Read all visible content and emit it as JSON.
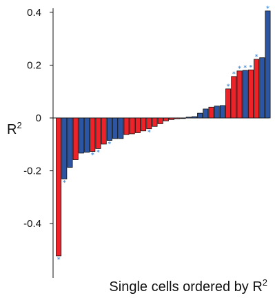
{
  "chart_data": {
    "type": "bar",
    "title": "",
    "ylabel": "R",
    "ylabel_superscript": "2",
    "xlabel": "Single cells ordered by R",
    "xlabel_superscript": "2",
    "ylim": [
      -0.55,
      0.42
    ],
    "yticks": [
      0.4,
      0.2,
      0,
      -0.2,
      -0.4
    ],
    "ytick_labels": [
      "0.4",
      "0.2",
      "0",
      "-0.2",
      "-0.4"
    ],
    "grid": false,
    "legend": "none",
    "significance_marker": "*",
    "colors": {
      "red": "#ee2229",
      "blue": "#2c55a3",
      "marker": "#4a90d9",
      "edge": "#111111"
    },
    "bars": [
      {
        "value": -0.522,
        "color": "red",
        "significant": true
      },
      {
        "value": -0.231,
        "color": "blue",
        "significant": true
      },
      {
        "value": -0.187,
        "color": "blue",
        "significant": false
      },
      {
        "value": -0.158,
        "color": "red",
        "significant": false
      },
      {
        "value": -0.133,
        "color": "blue",
        "significant": false
      },
      {
        "value": -0.13,
        "color": "blue",
        "significant": false
      },
      {
        "value": -0.127,
        "color": "red",
        "significant": true
      },
      {
        "value": -0.116,
        "color": "red",
        "significant": true
      },
      {
        "value": -0.099,
        "color": "red",
        "significant": false
      },
      {
        "value": -0.085,
        "color": "blue",
        "significant": true
      },
      {
        "value": -0.078,
        "color": "blue",
        "significant": false
      },
      {
        "value": -0.078,
        "color": "blue",
        "significant": false
      },
      {
        "value": -0.063,
        "color": "red",
        "significant": false
      },
      {
        "value": -0.06,
        "color": "red",
        "significant": false
      },
      {
        "value": -0.056,
        "color": "red",
        "significant": false
      },
      {
        "value": -0.049,
        "color": "red",
        "significant": false
      },
      {
        "value": -0.041,
        "color": "red",
        "significant": true
      },
      {
        "value": -0.032,
        "color": "red",
        "significant": false
      },
      {
        "value": -0.022,
        "color": "red",
        "significant": false
      },
      {
        "value": -0.011,
        "color": "red",
        "significant": false
      },
      {
        "value": -0.006,
        "color": "red",
        "significant": false
      },
      {
        "value": -0.003,
        "color": "red",
        "significant": false
      },
      {
        "value": -0.002,
        "color": "blue",
        "significant": false
      },
      {
        "value": 0.003,
        "color": "blue",
        "significant": false
      },
      {
        "value": 0.005,
        "color": "blue",
        "significant": false
      },
      {
        "value": 0.018,
        "color": "blue",
        "significant": false
      },
      {
        "value": 0.034,
        "color": "blue",
        "significant": false
      },
      {
        "value": 0.041,
        "color": "red",
        "significant": false
      },
      {
        "value": 0.045,
        "color": "blue",
        "significant": false
      },
      {
        "value": 0.047,
        "color": "blue",
        "significant": false
      },
      {
        "value": 0.11,
        "color": "red",
        "significant": true
      },
      {
        "value": 0.157,
        "color": "red",
        "significant": true
      },
      {
        "value": 0.178,
        "color": "red",
        "significant": true
      },
      {
        "value": 0.18,
        "color": "blue",
        "significant": true
      },
      {
        "value": 0.182,
        "color": "red",
        "significant": true
      },
      {
        "value": 0.222,
        "color": "red",
        "significant": true
      },
      {
        "value": 0.228,
        "color": "blue",
        "significant": false
      },
      {
        "value": 0.405,
        "color": "blue",
        "significant": true
      }
    ]
  }
}
